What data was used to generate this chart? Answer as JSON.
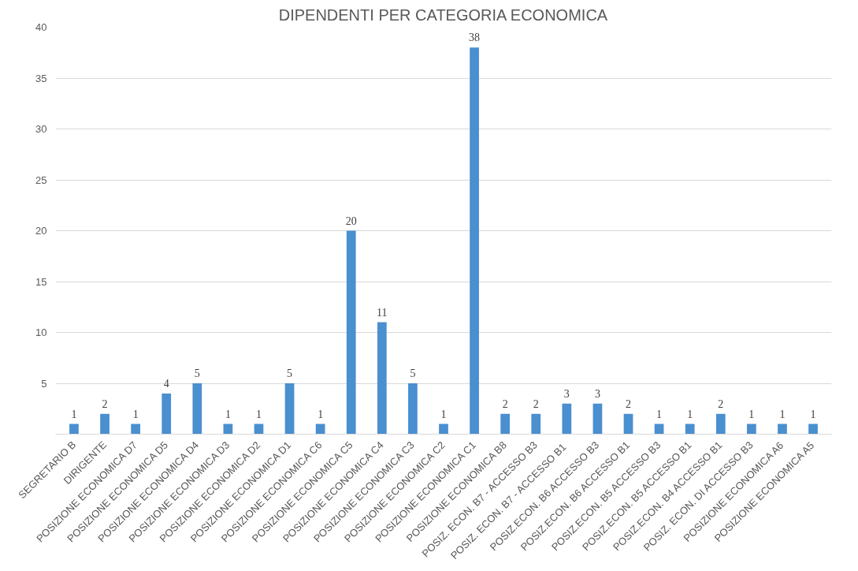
{
  "chart_data": {
    "type": "bar",
    "title": "DIPENDENTI PER CATEGORIA ECONOMICA",
    "categories": [
      "SEGRETARIO B",
      "DIRIGENTE",
      "POSIZIONE ECONOMICA D7",
      "POSIZIONE ECONOMICA D5",
      "POSIZIONE ECONOMICA D4",
      "POSIZIONE ECONOMICA D3",
      "POSIZIONE ECONOMICA D2",
      "POSIZIONE ECONOMICA D1",
      "POSIZIONE ECONOMICA C6",
      "POSIZIONE ECONOMICA C5",
      "POSIZIONE ECONOMICA C4",
      "POSIZIONE ECONOMICA C3",
      "POSIZIONE ECONOMICA C2",
      "POSIZIONE ECONOMICA C1",
      "POSIZIONE ECONOMICA B8",
      "POSIZ. ECON. B7 - ACCESSO B3",
      "POSIZ. ECON. B7 -  ACCESSO B1",
      "POSIZ.ECON. B6 ACCESSO B3",
      "POSIZ.ECON. B6 ACCESSO B1",
      "POSIZ.ECON. B5 ACCESSO B3",
      "POSIZ.ECON. B5 ACCESSO B1",
      "POSIZ.ECON. B4 ACCESSO B1",
      "POSIZ. ECON. DI ACCESSO B3",
      "POSIZIONE ECONOMICA A6",
      "POSIZIONE ECONOMICA A5"
    ],
    "values": [
      1,
      2,
      1,
      4,
      5,
      1,
      1,
      5,
      1,
      20,
      11,
      5,
      1,
      38,
      2,
      2,
      3,
      3,
      2,
      1,
      1,
      2,
      1,
      1,
      1
    ],
    "color": "#4a8fcf",
    "ylim": [
      0,
      40
    ],
    "yticks": [
      {
        "value": 0,
        "label": null
      },
      5,
      10,
      15,
      20,
      25,
      30,
      35,
      40
    ],
    "grid": "y",
    "data_labels": true
  }
}
